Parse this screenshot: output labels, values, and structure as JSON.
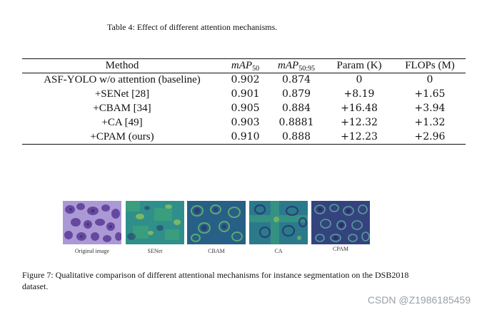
{
  "table": {
    "caption": "Table 4:  Effect of different attention mechanisms.",
    "headers": {
      "method": "Method",
      "map50_main": "mAP",
      "map50_sub": "50",
      "map5095_main": "mAP",
      "map5095_sub": "50:95",
      "param": "Param (K)",
      "flops": "FLOPs (M)"
    },
    "rows": [
      {
        "method": "ASF-YOLO w/o attention (baseline)",
        "map50": "0.902",
        "map5095": "0.874",
        "param": "0",
        "flops": "0"
      },
      {
        "method": "+SENet [28]",
        "map50": "0.901",
        "map5095": "0.879",
        "param": "+8.19",
        "flops": "+1.65"
      },
      {
        "method": "+CBAM [34]",
        "map50": "0.905",
        "map5095": "0.884",
        "param": "+16.48",
        "flops": "+3.94"
      },
      {
        "method": "+CA [49]",
        "map50": "0.903",
        "map5095": "0.8881",
        "param": "+12.32",
        "flops": "+1.32"
      },
      {
        "method": "+CPAM (ours)",
        "map50": "0.910",
        "map5095": "0.888",
        "param": "+12.23",
        "flops": "+2.96"
      }
    ]
  },
  "figure": {
    "panels": [
      {
        "label": "Original image"
      },
      {
        "label": "SENet"
      },
      {
        "label": "CBAM"
      },
      {
        "label": "CA"
      },
      {
        "label": "CPAM"
      }
    ],
    "caption": "Figure 7:  Qualitative comparison of different attentional mechanisms for instance segmentation on the DSB2018 dataset."
  },
  "watermark": "CSDN @Z1986185459",
  "colors": {
    "original_bg": "#b6a6dc",
    "nucleus": "#5a3c95",
    "heatmap_bg": "#2f8f8a",
    "heatmap_dark": "#2b2c6e",
    "heatmap_bright": "#b8d84a"
  }
}
